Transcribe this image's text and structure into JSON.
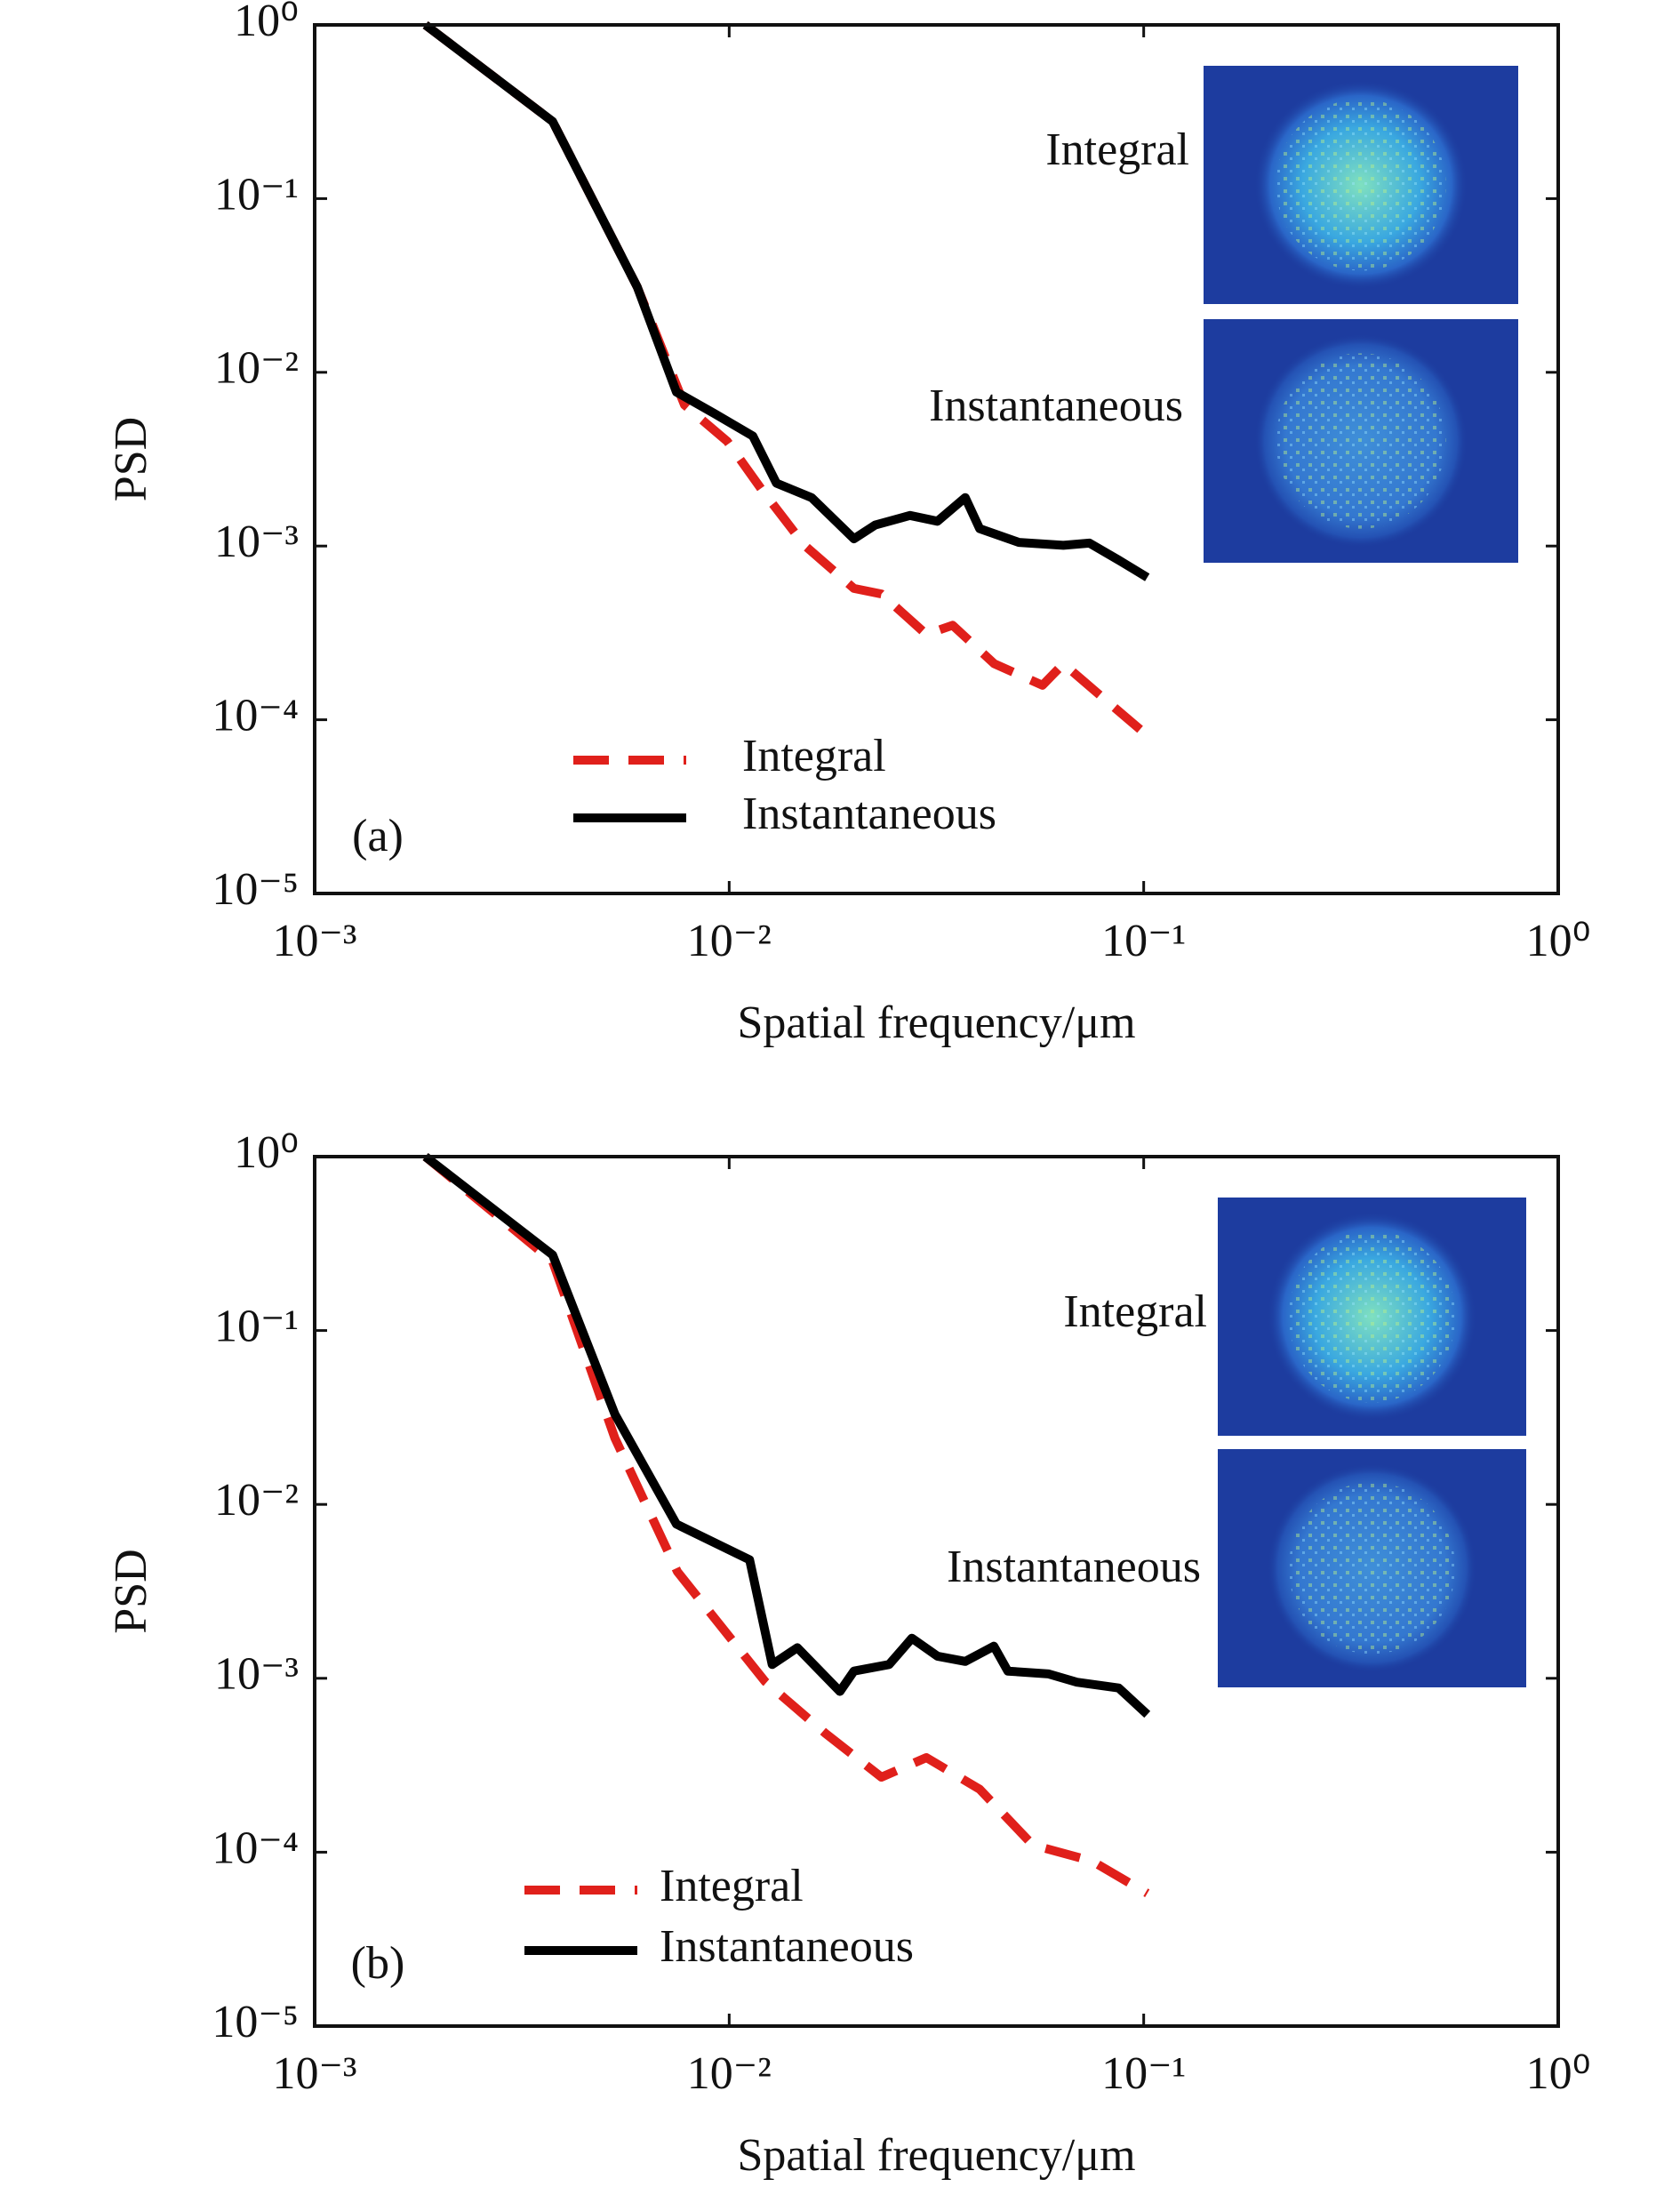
{
  "chart_data": [
    {
      "type": "line",
      "panel_label": "(a)",
      "xlabel": "Spatial frequency/μm",
      "ylabel": "PSD",
      "log_x": true,
      "log_y": true,
      "legend": "lower left",
      "xlim": [
        0.001,
        1
      ],
      "xticks": [
        {
          "value": 0.001,
          "label": "10⁻³"
        },
        {
          "value": 0.01,
          "label": "10⁻²"
        },
        {
          "value": 0.1,
          "label": "10⁻¹"
        },
        {
          "value": 1,
          "label": "10⁰"
        }
      ],
      "ylim": [
        1e-05,
        1
      ],
      "yticks": [
        {
          "value": 1,
          "label": "10⁰"
        },
        {
          "value": 0.1,
          "label": "10⁻¹"
        },
        {
          "value": 0.01,
          "label": "10⁻²"
        },
        {
          "value": 0.001,
          "label": "10⁻³"
        },
        {
          "value": 0.0001,
          "label": "10⁻⁴"
        },
        {
          "value": 1e-05,
          "label": "10⁻⁵"
        }
      ],
      "inset_labels": [
        "Integral",
        "Instantaneous"
      ],
      "series": [
        {
          "name": "Integral",
          "color": "#e0201b",
          "dashed": true,
          "x": [
            0.00185,
            0.00375,
            0.006,
            0.0078,
            0.0099,
            0.012,
            0.0152,
            0.02,
            0.0233,
            0.0299,
            0.0346,
            0.0436,
            0.057,
            0.064,
            0.078,
            0.098
          ],
          "values": [
            1,
            0.278,
            0.031,
            0.0065,
            0.004,
            0.0021,
            0.00101,
            0.00057,
            0.00053,
            0.00031,
            0.00035,
            0.00021,
            0.000158,
            0.00021,
            0.00014,
            8.8e-05
          ]
        },
        {
          "name": "Instantaneous",
          "color": "#000000",
          "dashed": false,
          "x": [
            0.00185,
            0.00375,
            0.006,
            0.00746,
            0.0092,
            0.0114,
            0.013,
            0.0158,
            0.02,
            0.0225,
            0.0273,
            0.0318,
            0.0371,
            0.0402,
            0.05,
            0.064,
            0.074,
            0.087,
            0.102
          ],
          "values": [
            1,
            0.278,
            0.031,
            0.0077,
            0.0058,
            0.0043,
            0.0023,
            0.0019,
            0.0011,
            0.00132,
            0.0015,
            0.00139,
            0.0019,
            0.00126,
            0.00105,
            0.00101,
            0.00104,
            0.00083,
            0.00066
          ]
        }
      ]
    },
    {
      "type": "line",
      "panel_label": "(b)",
      "xlabel": "Spatial frequency/μm",
      "ylabel": "PSD",
      "log_x": true,
      "log_y": true,
      "legend": "lower left",
      "xlim": [
        0.001,
        1
      ],
      "xticks": [
        {
          "value": 0.001,
          "label": "10⁻³"
        },
        {
          "value": 0.01,
          "label": "10⁻²"
        },
        {
          "value": 0.1,
          "label": "10⁻¹"
        },
        {
          "value": 1,
          "label": "10⁰"
        }
      ],
      "ylim": [
        1e-05,
        1
      ],
      "yticks": [
        {
          "value": 1,
          "label": "10⁰"
        },
        {
          "value": 0.1,
          "label": "10⁻¹"
        },
        {
          "value": 0.01,
          "label": "10⁻²"
        },
        {
          "value": 0.001,
          "label": "10⁻³"
        },
        {
          "value": 0.0001,
          "label": "10⁻⁴"
        },
        {
          "value": 1e-05,
          "label": "10⁻⁵"
        }
      ],
      "inset_labels": [
        "Integral",
        "Instantaneous"
      ],
      "series": [
        {
          "name": "Integral",
          "color": "#e0201b",
          "dashed": true,
          "x": [
            0.00185,
            0.00375,
            0.0053,
            0.0075,
            0.0122,
            0.0171,
            0.0233,
            0.0299,
            0.0402,
            0.054,
            0.075,
            0.102
          ],
          "values": [
            1,
            0.25,
            0.024,
            0.0041,
            0.00096,
            0.00048,
            0.00027,
            0.00035,
            0.00023,
            0.00011,
            8.9e-05,
            5.8e-05
          ]
        },
        {
          "name": "Instantaneous",
          "color": "#000000",
          "dashed": false,
          "x": [
            0.00185,
            0.00375,
            0.0053,
            0.00746,
            0.0112,
            0.0127,
            0.0146,
            0.0185,
            0.02,
            0.0243,
            0.0276,
            0.0318,
            0.0371,
            0.0435,
            0.047,
            0.059,
            0.069,
            0.087,
            0.102
          ],
          "values": [
            1,
            0.272,
            0.033,
            0.0077,
            0.0048,
            0.0012,
            0.0015,
            0.00084,
            0.0011,
            0.0012,
            0.0017,
            0.00134,
            0.00125,
            0.00153,
            0.0011,
            0.00106,
            0.00095,
            0.00088,
            0.00062
          ]
        }
      ]
    }
  ]
}
